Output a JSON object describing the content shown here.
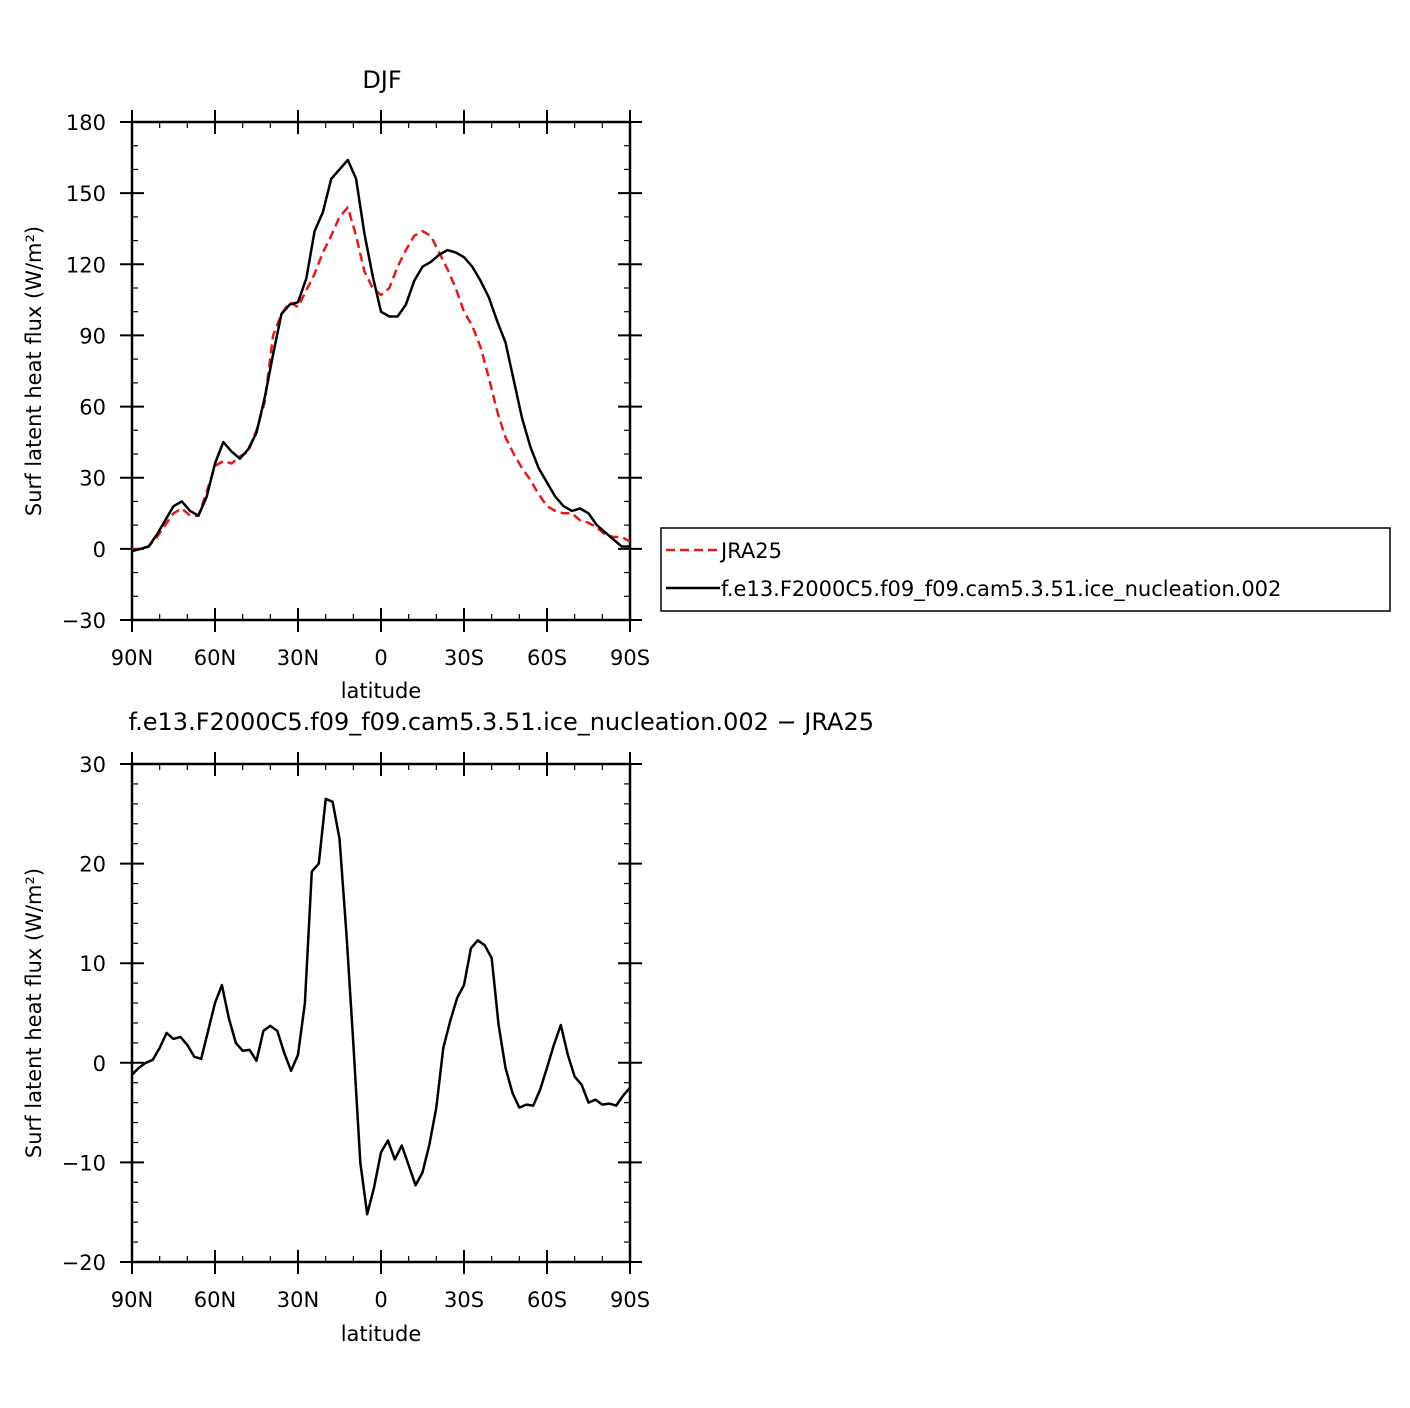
{
  "chart_data": [
    {
      "type": "line",
      "title": "DJF",
      "xlabel": "latitude",
      "ylabel": "Surf latent heat flux (W/m²)",
      "x_axis_direction": "north-to-south",
      "xlim": [
        90,
        -90
      ],
      "ylim": [
        -30,
        180
      ],
      "x_ticks": [
        {
          "value": 90,
          "label": "90N"
        },
        {
          "value": 60,
          "label": "60N"
        },
        {
          "value": 30,
          "label": "30N"
        },
        {
          "value": 0,
          "label": "0"
        },
        {
          "value": -30,
          "label": "30S"
        },
        {
          "value": -60,
          "label": "60S"
        },
        {
          "value": -90,
          "label": "90S"
        }
      ],
      "y_ticks": [
        {
          "value": 180,
          "label": "180"
        },
        {
          "value": 150,
          "label": "150"
        },
        {
          "value": 120,
          "label": "120"
        },
        {
          "value": 90,
          "label": "90"
        },
        {
          "value": 60,
          "label": "60"
        },
        {
          "value": 30,
          "label": "30"
        },
        {
          "value": 0,
          "label": "0"
        },
        {
          "value": -30,
          "label": "−30"
        }
      ],
      "legend": {
        "placement": "right",
        "entries": [
          "JRA25",
          "f.e13.F2000C5.f09_f09.cam5.3.51.ice_nucleation.002"
        ]
      },
      "series": [
        {
          "name": "JRA25",
          "color": "#e41a1c",
          "style": "dashed",
          "x": [
            90,
            87,
            84,
            81,
            78,
            75,
            72,
            69,
            66,
            63,
            60,
            57,
            54,
            51,
            48,
            45,
            42,
            39,
            36,
            33,
            30,
            27,
            24,
            21,
            18,
            15,
            12,
            9,
            6,
            3,
            0,
            -3,
            -6,
            -9,
            -12,
            -15,
            -18,
            -21,
            -24,
            -27,
            -30,
            -33,
            -36,
            -39,
            -42,
            -45,
            -48,
            -51,
            -54,
            -57,
            -60,
            -63,
            -66,
            -69,
            -72,
            -75,
            -78,
            -81,
            -84,
            -87,
            -90
          ],
          "y": [
            -0.5,
            0,
            1,
            5,
            10,
            15,
            17,
            14,
            14,
            24,
            35,
            37,
            36,
            39,
            41,
            50,
            62,
            90,
            99,
            104,
            102,
            109,
            116,
            125,
            132,
            140,
            144,
            132,
            117,
            110,
            107,
            110,
            119,
            126,
            132,
            134,
            132,
            125,
            118,
            110,
            100,
            94,
            85,
            72,
            58,
            47,
            40,
            34,
            29,
            23,
            18,
            16,
            15,
            15,
            12,
            11,
            9,
            6,
            5,
            5,
            3
          ]
        },
        {
          "name": "f.e13.F2000C5.f09_f09.cam5.3.51.ice_nucleation.002",
          "color": "#000000",
          "style": "solid",
          "x": [
            90,
            87,
            84,
            81,
            78,
            75,
            72,
            69,
            66,
            63,
            60,
            57,
            54,
            51,
            48,
            45,
            42,
            39,
            36,
            33,
            30,
            27,
            24,
            21,
            18,
            15,
            12,
            9,
            6,
            3,
            0,
            -3,
            -6,
            -9,
            -12,
            -15,
            -18,
            -21,
            -24,
            -27,
            -30,
            -33,
            -36,
            -39,
            -42,
            -45,
            -48,
            -51,
            -54,
            -57,
            -60,
            -63,
            -66,
            -69,
            -72,
            -75,
            -78,
            -81,
            -84,
            -87,
            -90
          ],
          "y": [
            -1,
            0,
            1,
            6,
            12,
            18,
            20,
            16,
            14,
            22,
            36,
            45,
            41,
            38,
            42,
            49,
            64,
            82,
            99,
            103,
            104,
            114,
            134,
            142,
            156,
            160,
            164,
            156,
            133,
            115,
            100,
            98,
            98,
            103,
            113,
            119,
            121,
            124,
            126,
            125,
            123,
            119,
            113,
            106,
            96,
            87,
            71,
            55,
            43,
            34,
            28,
            22,
            18,
            16,
            17,
            15,
            10,
            7,
            4,
            1,
            1
          ]
        }
      ]
    },
    {
      "type": "line",
      "title": "f.e13.F2000C5.f09_f09.cam5.3.51.ice_nucleation.002 − JRA25",
      "xlabel": "latitude",
      "ylabel": "Surf latent heat flux (W/m²)",
      "x_axis_direction": "north-to-south",
      "xlim": [
        90,
        -90
      ],
      "ylim": [
        -20,
        30
      ],
      "x_ticks": [
        {
          "value": 90,
          "label": "90N"
        },
        {
          "value": 60,
          "label": "60N"
        },
        {
          "value": 30,
          "label": "30N"
        },
        {
          "value": 0,
          "label": "0"
        },
        {
          "value": -30,
          "label": "30S"
        },
        {
          "value": -60,
          "label": "60S"
        },
        {
          "value": -90,
          "label": "90S"
        }
      ],
      "y_ticks": [
        {
          "value": 30,
          "label": "30"
        },
        {
          "value": 20,
          "label": "20"
        },
        {
          "value": 10,
          "label": "10"
        },
        {
          "value": 0,
          "label": "0"
        },
        {
          "value": -10,
          "label": "−10"
        },
        {
          "value": -20,
          "label": "−20"
        }
      ],
      "series": [
        {
          "color": "#000000",
          "style": "solid",
          "x": [
            90,
            87.5,
            85,
            82.5,
            80,
            77.5,
            75,
            72.5,
            70,
            67.5,
            65,
            62.5,
            60,
            57.5,
            55,
            52.5,
            50,
            47.5,
            45,
            42.5,
            40,
            37.5,
            35,
            32.5,
            30,
            27.5,
            25,
            22.5,
            20,
            17.5,
            15,
            12.5,
            10,
            7.5,
            5,
            2.5,
            0,
            -2.5,
            -5,
            -7.5,
            -10,
            -12.5,
            -15,
            -17.5,
            -20,
            -22.5,
            -25,
            -27.5,
            -30,
            -32.5,
            -35,
            -37.5,
            -40,
            -42.5,
            -45,
            -47.5,
            -50,
            -52.5,
            -55,
            -57.5,
            -60,
            -62.5,
            -65,
            -67.5,
            -70,
            -72.5,
            -75,
            -77.5,
            -80,
            -82.5,
            -85,
            -87.5,
            -90
          ],
          "y": [
            -1.2,
            -0.5,
            0,
            0.3,
            1.5,
            3,
            2.4,
            2.6,
            1.8,
            0.6,
            0.4,
            3.2,
            6,
            7.8,
            4.5,
            2,
            1.2,
            1.3,
            0.2,
            3.2,
            3.7,
            3.2,
            1,
            -0.8,
            0.8,
            6,
            19.2,
            20,
            26.5,
            26.2,
            22.5,
            13,
            2,
            -10,
            -15.2,
            -12.5,
            -9,
            -7.8,
            -9.7,
            -8.3,
            -10.3,
            -12.3,
            -11,
            -8.2,
            -4.5,
            1.5,
            4.2,
            6.5,
            7.8,
            11.5,
            12.3,
            11.8,
            10.5,
            3.8,
            -0.5,
            -3,
            -4.5,
            -4.2,
            -4.3,
            -2.7,
            -0.5,
            1.8,
            3.8,
            0.8,
            -1.4,
            -2.2,
            -4,
            -3.7,
            -4.2,
            -4.1,
            -4.3,
            -3.3,
            -2.5
          ]
        }
      ]
    }
  ]
}
